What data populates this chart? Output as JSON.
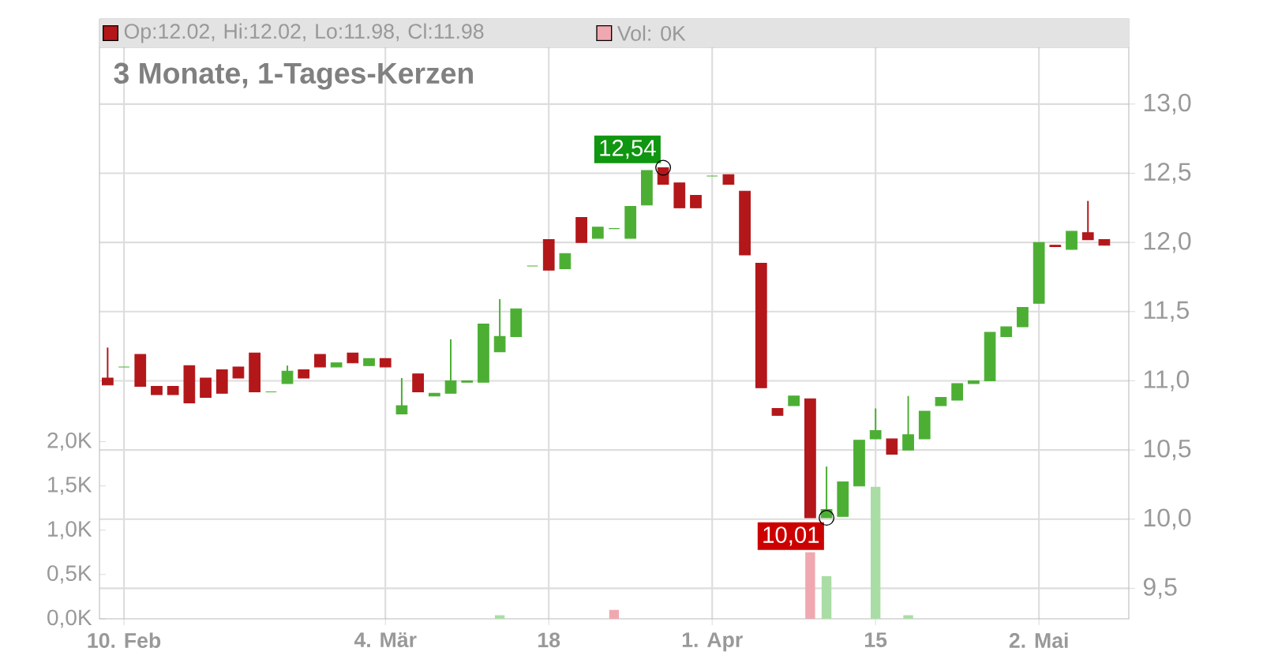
{
  "chart_data": {
    "type": "candlestick",
    "title": "3 Monate, 1-Tages-Kerzen",
    "categories": [
      null,
      "10. Feb",
      null,
      null,
      null,
      null,
      null,
      null,
      null,
      null,
      null,
      null,
      null,
      null,
      null,
      null,
      null,
      "4. Mär",
      null,
      null,
      null,
      null,
      null,
      null,
      null,
      null,
      null,
      "18",
      null,
      null,
      null,
      null,
      null,
      null,
      null,
      null,
      null,
      "1. Apr",
      null,
      null,
      null,
      null,
      null,
      null,
      null,
      null,
      null,
      "15",
      null,
      null,
      null,
      null,
      null,
      null,
      null,
      null,
      null,
      "2. Mai",
      null,
      null,
      null,
      null
    ],
    "ohlc": [
      [
        11.02,
        11.24,
        10.97,
        10.97
      ],
      [
        11.1,
        11.1,
        11.1,
        11.1
      ],
      [
        11.19,
        11.19,
        10.96,
        10.96
      ],
      [
        10.96,
        10.96,
        10.9,
        10.9
      ],
      [
        10.96,
        10.96,
        10.9,
        10.9
      ],
      [
        11.11,
        11.11,
        10.84,
        10.84
      ],
      [
        11.02,
        11.02,
        10.88,
        10.88
      ],
      [
        11.08,
        11.08,
        10.91,
        10.91
      ],
      [
        11.1,
        11.1,
        11.02,
        11.02
      ],
      [
        11.2,
        11.2,
        10.92,
        10.92
      ],
      [
        10.92,
        10.92,
        10.92,
        10.92
      ],
      [
        10.98,
        11.11,
        10.98,
        11.07
      ],
      [
        11.08,
        11.08,
        11.02,
        11.02
      ],
      [
        11.19,
        11.19,
        11.1,
        11.1
      ],
      [
        11.1,
        11.13,
        11.1,
        11.13
      ],
      [
        11.2,
        11.2,
        11.13,
        11.13
      ],
      [
        11.11,
        11.16,
        11.11,
        11.16
      ],
      [
        11.16,
        11.16,
        11.1,
        11.1
      ],
      [
        10.76,
        11.02,
        10.76,
        10.82
      ],
      [
        11.05,
        11.05,
        10.92,
        10.92
      ],
      [
        10.89,
        10.91,
        10.89,
        10.91
      ],
      [
        10.91,
        11.3,
        10.91,
        11.0
      ],
      [
        10.99,
        11.0,
        10.99,
        11.0
      ],
      [
        10.99,
        11.41,
        10.99,
        11.41
      ],
      [
        11.21,
        11.59,
        11.21,
        11.32
      ],
      [
        11.32,
        11.52,
        11.32,
        11.52
      ],
      [
        11.83,
        11.83,
        11.83,
        11.83
      ],
      [
        12.02,
        12.02,
        11.8,
        11.8
      ],
      [
        11.81,
        11.92,
        11.81,
        11.92
      ],
      [
        12.18,
        12.18,
        12.0,
        12.0
      ],
      [
        12.03,
        12.11,
        12.03,
        12.11
      ],
      [
        12.1,
        12.1,
        12.1,
        12.1
      ],
      [
        12.03,
        12.26,
        12.03,
        12.26
      ],
      [
        12.27,
        12.52,
        12.27,
        12.52
      ],
      [
        12.54,
        12.54,
        12.42,
        12.42
      ],
      [
        12.43,
        12.43,
        12.25,
        12.25
      ],
      [
        12.34,
        12.34,
        12.25,
        12.25
      ],
      [
        12.48,
        12.48,
        12.48,
        12.48
      ],
      [
        12.49,
        12.49,
        12.42,
        12.42
      ],
      [
        12.37,
        12.37,
        11.91,
        11.91
      ],
      [
        11.85,
        11.85,
        10.95,
        10.95
      ],
      [
        10.8,
        10.8,
        10.75,
        10.75
      ],
      [
        10.82,
        10.89,
        10.82,
        10.89
      ],
      [
        10.87,
        10.87,
        10.01,
        10.01
      ],
      [
        10.01,
        10.38,
        10.01,
        10.07
      ],
      [
        10.02,
        10.27,
        10.02,
        10.27
      ],
      [
        10.24,
        10.57,
        10.24,
        10.57
      ],
      [
        10.58,
        10.8,
        10.58,
        10.64
      ],
      [
        10.58,
        10.58,
        10.47,
        10.47
      ],
      [
        10.5,
        10.89,
        10.5,
        10.61
      ],
      [
        10.58,
        10.78,
        10.58,
        10.78
      ],
      [
        10.82,
        10.88,
        10.82,
        10.88
      ],
      [
        10.86,
        10.98,
        10.86,
        10.98
      ],
      [
        10.98,
        11.0,
        10.98,
        11.0
      ],
      [
        11.0,
        11.35,
        11.0,
        11.35
      ],
      [
        11.32,
        11.39,
        11.32,
        11.39
      ],
      [
        11.39,
        11.53,
        11.39,
        11.53
      ],
      [
        11.56,
        12.0,
        11.56,
        12.0
      ],
      [
        11.98,
        11.98,
        11.97,
        11.97
      ],
      [
        11.95,
        12.08,
        11.95,
        12.08
      ],
      [
        12.07,
        12.3,
        12.02,
        12.02
      ],
      [
        12.02,
        12.02,
        11.98,
        11.98
      ]
    ],
    "colors": [
      "#b3171a",
      "#4caf34",
      "#b3171a",
      "#b3171a",
      "#b3171a",
      "#b3171a",
      "#b3171a",
      "#b3171a",
      "#b3171a",
      "#b3171a",
      "#4caf34",
      "#4caf34",
      "#b3171a",
      "#b3171a",
      "#4caf34",
      "#b3171a",
      "#4caf34",
      "#b3171a",
      "#4caf34",
      "#b3171a",
      "#4caf34",
      "#4caf34",
      "#4caf34",
      "#4caf34",
      "#4caf34",
      "#4caf34",
      "#4caf34",
      "#b3171a",
      "#4caf34",
      "#b3171a",
      "#4caf34",
      "#4caf34",
      "#4caf34",
      "#4caf34",
      "#b3171a",
      "#b3171a",
      "#b3171a",
      "#4caf34",
      "#b3171a",
      "#b3171a",
      "#b3171a",
      "#b3171a",
      "#4caf34",
      "#b3171a",
      "#4caf34",
      "#4caf34",
      "#4caf34",
      "#4caf34",
      "#b3171a",
      "#4caf34",
      "#4caf34",
      "#4caf34",
      "#4caf34",
      "#4caf34",
      "#4caf34",
      "#4caf34",
      "#4caf34",
      "#4caf34",
      "#b3171a",
      "#4caf34",
      "#b3171a",
      "#b3171a"
    ],
    "series": [
      {
        "type": "bar",
        "axis": "y2",
        "values": [
          0,
          0,
          0,
          0,
          0,
          0,
          0,
          0,
          0,
          0,
          0,
          0,
          0,
          0,
          0,
          0,
          0,
          0,
          0,
          0,
          0,
          0,
          0,
          0,
          0.04,
          0,
          0,
          0,
          0,
          0,
          0,
          0.1,
          0,
          0,
          0,
          0,
          0,
          0,
          0,
          0,
          0,
          0,
          0,
          0.75,
          0.48,
          0,
          0,
          1.49,
          0,
          0.04,
          0,
          0,
          0,
          0,
          0,
          0,
          0,
          0,
          0,
          0,
          0,
          0
        ],
        "colors": [
          "#f0a8b0",
          "#aadda6",
          "#f0a8b0",
          "#f0a8b0",
          "#f0a8b0",
          "#f0a8b0",
          "#f0a8b0",
          "#f0a8b0",
          "#f0a8b0",
          "#f0a8b0",
          "#aadda6",
          "#aadda6",
          "#f0a8b0",
          "#f0a8b0",
          "#aadda6",
          "#f0a8b0",
          "#aadda6",
          "#f0a8b0",
          "#aadda6",
          "#f0a8b0",
          "#aadda6",
          "#aadda6",
          "#aadda6",
          "#aadda6",
          "#aadda6",
          "#aadda6",
          "#aadda6",
          "#f0a8b0",
          "#aadda6",
          "#f0a8b0",
          "#aadda6",
          "#f0a8b0",
          "#aadda6",
          "#aadda6",
          "#f0a8b0",
          "#f0a8b0",
          "#f0a8b0",
          "#aadda6",
          "#f0a8b0",
          "#f0a8b0",
          "#f0a8b0",
          "#f0a8b0",
          "#aadda6",
          "#f0a8b0",
          "#aadda6",
          "#aadda6",
          "#aadda6",
          "#aadda6",
          "#f0a8b0",
          "#aadda6",
          "#aadda6",
          "#aadda6",
          "#aadda6",
          "#aadda6",
          "#aadda6",
          "#aadda6",
          "#aadda6",
          "#aadda6",
          "#f0a8b0",
          "#aadda6",
          "#f0a8b0",
          "#f0a8b0"
        ]
      }
    ],
    "ylim": [
      9.28,
      13.41
    ],
    "yticks": [
      {
        "value": 9.5,
        "label": "9,5"
      },
      {
        "value": 10,
        "label": "10,0"
      },
      {
        "value": 10.5,
        "label": "10,5"
      },
      {
        "value": 11,
        "label": "11,0"
      },
      {
        "value": 11.5,
        "label": "11,5"
      },
      {
        "value": 12,
        "label": "12,0"
      },
      {
        "value": 12.5,
        "label": "12,5"
      },
      {
        "value": 13,
        "label": "13,0"
      }
    ],
    "y2lim": [
      0,
      6.45
    ],
    "y2ticks": [
      {
        "value": 0,
        "label": "0,0K"
      },
      {
        "value": 0.5,
        "label": "0,5K"
      },
      {
        "value": 1,
        "label": "1,0K"
      },
      {
        "value": 1.5,
        "label": "1,5K"
      },
      {
        "value": 2,
        "label": "2,0K"
      }
    ],
    "grid": true,
    "annotations": [
      "Op:12.02, Hi:12.02, Lo:11.98, Cl:11.98",
      "Vol: 0K",
      "12,54",
      "10,01"
    ]
  }
}
